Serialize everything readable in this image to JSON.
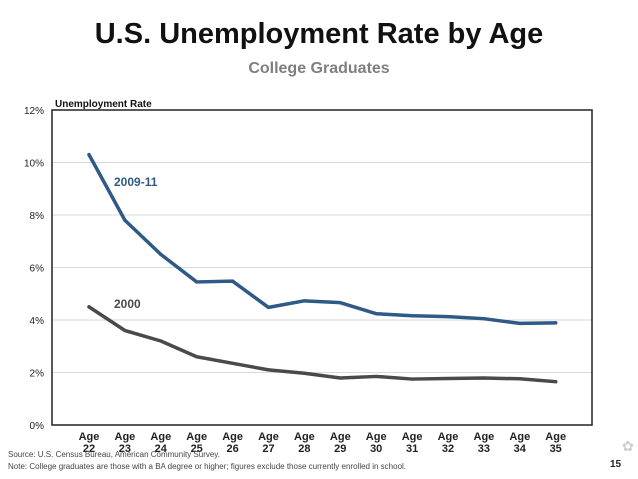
{
  "title": "U.S. Unemployment Rate by Age",
  "subtitle": "College Graduates",
  "footer": {
    "source": "Source: U.S. Census Bureau, American Community Survey.",
    "note": "Note: College graduates are those with a BA degree or higher; figures exclude those currently enrolled in school.",
    "page_number": "15"
  },
  "colors": {
    "series_2009": "#2e5a85",
    "series_2000": "#4a4a4a",
    "grid": "#d9d9d9",
    "frame": "#222222"
  },
  "chart_data": {
    "type": "line",
    "title": "U.S. Unemployment Rate by Age",
    "subtitle": "College Graduates",
    "ylabel": "Unemployment Rate",
    "xlabel": "",
    "ylim": [
      0,
      12
    ],
    "yticks": [
      "0%",
      "2%",
      "4%",
      "6%",
      "8%",
      "10%",
      "12%"
    ],
    "categories": [
      [
        "Age",
        "22"
      ],
      [
        "Age",
        "23"
      ],
      [
        "Age",
        "24"
      ],
      [
        "Age",
        "25"
      ],
      [
        "Age",
        "26"
      ],
      [
        "Age",
        "27"
      ],
      [
        "Age",
        "28"
      ],
      [
        "Age",
        "29"
      ],
      [
        "Age",
        "30"
      ],
      [
        "Age",
        "31"
      ],
      [
        "Age",
        "32"
      ],
      [
        "Age",
        "33"
      ],
      [
        "Age",
        "34"
      ],
      [
        "Age",
        "35"
      ]
    ],
    "grid": true,
    "series": [
      {
        "name": "2009-11",
        "color": "#2e5a85",
        "values": [
          10.3,
          7.8,
          6.5,
          5.45,
          5.48,
          4.48,
          4.73,
          4.66,
          4.24,
          4.16,
          4.13,
          4.05,
          3.87,
          3.89
        ]
      },
      {
        "name": "2000",
        "color": "#4a4a4a",
        "values": [
          4.5,
          3.6,
          3.2,
          2.6,
          2.35,
          2.1,
          1.97,
          1.79,
          1.85,
          1.75,
          1.77,
          1.79,
          1.76,
          1.65
        ]
      }
    ]
  }
}
